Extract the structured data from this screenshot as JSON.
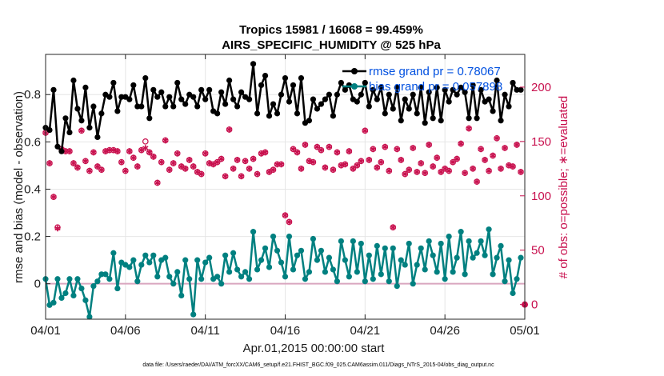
{
  "chart_data": {
    "type": "line",
    "title": "Tropics 15981 / 16068 = 99.459%",
    "subtitle": "AIRS_SPECIFIC_HUMIDITY @ 525 hPa",
    "xlabel": "Apr.01,2015 00:00:00 start",
    "ylabel": "rmse and bias (model - observation)",
    "ylabel_right": "# of obs: o=possible; ∗=evaluated",
    "ylim": [
      -0.15,
      0.97
    ],
    "ylim_right": [
      -13.5,
      230.1
    ],
    "xlim": [
      0,
      30
    ],
    "x_ticks": [
      0,
      5,
      10,
      15,
      20,
      25,
      30
    ],
    "x_tick_labels": [
      "04/01",
      "04/06",
      "04/11",
      "04/16",
      "04/21",
      "04/26",
      "05/01"
    ],
    "y_ticks": [
      0,
      0.2,
      0.4,
      0.6,
      0.8
    ],
    "y_tick_labels": [
      "0",
      "0.2",
      "0.4",
      "0.6",
      "0.8"
    ],
    "y_ticks_right": [
      0,
      50,
      100,
      150,
      200
    ],
    "y_tick_labels_right": [
      "0",
      "50",
      "100",
      "150",
      "200"
    ],
    "grid": true,
    "legend_position": "top-right",
    "footnote": "data file: /Users/raeder/DAI/ATM_forcXX/CAM6_setup/f.e21.FHIST_BGC.f09_025.CAM6assim.011/Diags_NTrS_2015-04/obs_diag_output.nc",
    "colors": {
      "rmse": "#000000",
      "bias": "#008080",
      "obs": "#c8104e",
      "zero_line": "#d9a6bf"
    },
    "series": [
      {
        "name": "rmse",
        "legend": "rmse grand pr = 0.78067",
        "x": [
          0,
          0.25,
          0.5,
          0.75,
          1,
          1.25,
          1.5,
          1.75,
          2,
          2.25,
          2.5,
          2.75,
          3,
          3.25,
          3.5,
          3.75,
          4,
          4.25,
          4.5,
          4.75,
          5,
          5.25,
          5.5,
          5.75,
          6,
          6.25,
          6.5,
          6.75,
          7,
          7.25,
          7.5,
          7.75,
          8,
          8.25,
          8.5,
          8.75,
          9,
          9.25,
          9.5,
          9.75,
          10,
          10.25,
          10.5,
          10.75,
          11,
          11.25,
          11.5,
          11.75,
          12,
          12.25,
          12.5,
          12.75,
          13,
          13.25,
          13.5,
          13.75,
          14,
          14.25,
          14.5,
          14.75,
          15,
          15.25,
          15.5,
          15.75,
          16,
          16.25,
          16.5,
          16.75,
          17,
          17.25,
          17.5,
          17.75,
          18,
          18.25,
          18.5,
          18.75,
          19,
          19.25,
          19.5,
          19.75,
          20,
          20.25,
          20.5,
          20.75,
          21,
          21.25,
          21.5,
          21.75,
          22,
          22.25,
          22.5,
          22.75,
          23,
          23.25,
          23.5,
          23.75,
          24,
          24.25,
          24.5,
          24.75,
          25,
          25.25,
          25.5,
          25.75,
          26,
          26.25,
          26.5,
          26.75,
          27,
          27.25,
          27.5,
          27.75,
          28,
          28.25,
          28.5,
          28.75,
          29,
          29.25,
          29.5,
          29.75
        ],
        "values": [
          0.66,
          0.65,
          0.82,
          0.58,
          0.56,
          0.7,
          0.64,
          0.86,
          0.74,
          0.69,
          0.83,
          0.66,
          0.75,
          0.62,
          0.72,
          0.8,
          0.79,
          0.85,
          0.73,
          0.79,
          0.79,
          0.78,
          0.84,
          0.75,
          0.75,
          0.87,
          0.7,
          0.82,
          0.79,
          0.81,
          0.75,
          0.79,
          0.75,
          0.85,
          0.78,
          0.76,
          0.8,
          0.79,
          0.75,
          0.82,
          0.78,
          0.82,
          0.73,
          0.72,
          0.81,
          0.76,
          0.86,
          0.78,
          0.75,
          0.81,
          0.79,
          0.78,
          0.93,
          0.72,
          0.84,
          0.88,
          0.71,
          0.76,
          0.72,
          0.8,
          0.87,
          0.77,
          0.84,
          0.72,
          0.87,
          0.68,
          0.69,
          0.78,
          0.74,
          0.76,
          0.78,
          0.8,
          0.71,
          0.8,
          0.85,
          0.82,
          0.84,
          0.78,
          0.77,
          0.8,
          0.85,
          0.75,
          0.82,
          0.78,
          0.83,
          0.72,
          0.8,
          0.74,
          0.83,
          0.69,
          0.78,
          0.74,
          0.8,
          0.72,
          0.83,
          0.68,
          0.81,
          0.7,
          0.83,
          0.69,
          0.82,
          0.77,
          0.82,
          0.8,
          0.83,
          0.81,
          0.7,
          0.84,
          0.7,
          0.82,
          0.77,
          0.78,
          0.73,
          0.86,
          0.69,
          0.8,
          0.75,
          0.85,
          0.82,
          0.82
        ]
      },
      {
        "name": "bias",
        "legend": "bias grand pr = 0.057898",
        "x": [
          0,
          0.25,
          0.5,
          0.75,
          1,
          1.25,
          1.5,
          1.75,
          2,
          2.25,
          2.5,
          2.75,
          3,
          3.25,
          3.5,
          3.75,
          4,
          4.25,
          4.5,
          4.75,
          5,
          5.25,
          5.5,
          5.75,
          6,
          6.25,
          6.5,
          6.75,
          7,
          7.25,
          7.5,
          7.75,
          8,
          8.25,
          8.5,
          8.75,
          9,
          9.25,
          9.5,
          9.75,
          10,
          10.25,
          10.5,
          10.75,
          11,
          11.25,
          11.5,
          11.75,
          12,
          12.25,
          12.5,
          12.75,
          13,
          13.25,
          13.5,
          13.75,
          14,
          14.25,
          14.5,
          14.75,
          15,
          15.25,
          15.5,
          15.75,
          16,
          16.25,
          16.5,
          16.75,
          17,
          17.25,
          17.5,
          17.75,
          18,
          18.25,
          18.5,
          18.75,
          19,
          19.25,
          19.5,
          19.75,
          20,
          20.25,
          20.5,
          20.75,
          21,
          21.25,
          21.5,
          21.75,
          22,
          22.25,
          22.5,
          22.75,
          23,
          23.25,
          23.5,
          23.75,
          24,
          24.25,
          24.5,
          24.75,
          25,
          25.25,
          25.5,
          25.75,
          26,
          26.25,
          26.5,
          26.75,
          27,
          27.25,
          27.5,
          27.75,
          28,
          28.25,
          28.5,
          28.75,
          29,
          29.25,
          29.5,
          29.75
        ],
        "values": [
          0.02,
          -0.09,
          -0.08,
          0.02,
          -0.06,
          -0.04,
          0.02,
          -0.05,
          0.02,
          -0.02,
          -0.07,
          -0.14,
          -0.01,
          0.01,
          0.04,
          0.04,
          0.02,
          0.13,
          -0.02,
          0.09,
          0.08,
          0.07,
          0.1,
          0.01,
          0.08,
          0.12,
          0.09,
          0.12,
          0.03,
          0.1,
          0.11,
          0.03,
          0.0,
          0.05,
          -0.05,
          0.1,
          0.02,
          -0.13,
          0.1,
          0.02,
          0.09,
          0.11,
          0.02,
          0.03,
          0.0,
          0.12,
          0.05,
          0.13,
          0.06,
          0.03,
          0.05,
          0.02,
          0.22,
          0.06,
          0.1,
          0.15,
          0.07,
          0.2,
          0.14,
          0.09,
          0.03,
          0.2,
          0.06,
          0.12,
          0.14,
          0.02,
          0.05,
          0.19,
          0.1,
          0.14,
          0.05,
          0.11,
          0.06,
          0.01,
          0.18,
          0.1,
          0.03,
          0.18,
          0.05,
          0.17,
          0.01,
          0.12,
          0.02,
          0.16,
          0.04,
          0.15,
          0.01,
          0.15,
          -0.01,
          0.1,
          0.08,
          0.17,
          0.0,
          0.08,
          0.15,
          0.06,
          0.18,
          0.12,
          0.05,
          0.17,
          0.02,
          0.2,
          0.05,
          0.11,
          0.22,
          0.04,
          0.18,
          0.11,
          0.13,
          0.18,
          0.12,
          0.23,
          0.04,
          0.11,
          0.16,
          0.01,
          0.1,
          -0.04,
          0.02,
          0.11
        ]
      },
      {
        "name": "obs_evaluated",
        "axis": "right",
        "marker": "asterisk",
        "x": [
          0,
          0.25,
          0.5,
          0.75,
          1,
          1.25,
          1.5,
          1.75,
          2,
          2.25,
          2.5,
          2.75,
          3,
          3.25,
          3.5,
          3.75,
          4,
          4.25,
          4.5,
          4.75,
          5,
          5.25,
          5.5,
          5.75,
          6,
          6.25,
          6.5,
          6.75,
          7,
          7.25,
          7.5,
          7.75,
          8,
          8.25,
          8.5,
          8.75,
          9,
          9.25,
          9.5,
          9.75,
          10,
          10.25,
          10.5,
          10.75,
          11,
          11.25,
          11.5,
          11.75,
          12,
          12.25,
          12.5,
          12.75,
          13,
          13.25,
          13.5,
          13.75,
          14,
          14.25,
          14.5,
          14.75,
          15,
          15.25,
          15.5,
          15.75,
          16,
          16.25,
          16.5,
          16.75,
          17,
          17.25,
          17.5,
          17.75,
          18,
          18.25,
          18.5,
          18.75,
          19,
          19.25,
          19.5,
          19.75,
          20,
          20.25,
          20.5,
          20.75,
          21,
          21.25,
          21.5,
          21.75,
          22,
          22.25,
          22.5,
          22.75,
          23,
          23.25,
          23.5,
          23.75,
          24,
          24.25,
          24.5,
          24.75,
          25,
          25.25,
          25.5,
          25.75,
          26,
          26.25,
          26.5,
          26.75,
          27,
          27.25,
          27.5,
          27.75,
          28,
          28.25,
          28.5,
          28.75,
          29,
          29.25,
          29.5,
          29.75
        ],
        "values": [
          158,
          130,
          99,
          70,
          143,
          141,
          141,
          130,
          126,
          160,
          132,
          123,
          140,
          127,
          124,
          141,
          142,
          142,
          141,
          131,
          123,
          141,
          135,
          127,
          142,
          144,
          140,
          136,
          112,
          131,
          151,
          124,
          130,
          139,
          127,
          125,
          133,
          127,
          122,
          120,
          139,
          130,
          129,
          131,
          134,
          118,
          161,
          125,
          133,
          118,
          132,
          125,
          134,
          120,
          139,
          140,
          122,
          124,
          129,
          129,
          82,
          76,
          143,
          140,
          125,
          147,
          132,
          131,
          145,
          142,
          126,
          145,
          124,
          140,
          128,
          129,
          141,
          125,
          128,
          132,
          160,
          133,
          143,
          126,
          131,
          145,
          123,
          71,
          143,
          133,
          120,
          124,
          144,
          122,
          130,
          121,
          147,
          127,
          135,
          122,
          125,
          123,
          131,
          134,
          148,
          121,
          162,
          125,
          113,
          143,
          133,
          123,
          137,
          153,
          125,
          144,
          128,
          127,
          147,
          122
        ]
      },
      {
        "name": "obs_possible",
        "axis": "right",
        "marker": "circle",
        "x": [
          0,
          0.25,
          0.5,
          0.75,
          1,
          1.25,
          1.5,
          1.75,
          2,
          2.25,
          2.5,
          2.75,
          3,
          3.25,
          3.5,
          3.75,
          4,
          4.25,
          4.5,
          4.75,
          5,
          5.25,
          5.5,
          5.75,
          6,
          6.25,
          6.5,
          6.75,
          7,
          7.25,
          7.5,
          7.75,
          8,
          8.25,
          8.5,
          8.75,
          9,
          9.25,
          9.5,
          9.75,
          10,
          10.25,
          10.5,
          10.75,
          11,
          11.25,
          11.5,
          11.75,
          12,
          12.25,
          12.5,
          12.75,
          13,
          13.25,
          13.5,
          13.75,
          14,
          14.25,
          14.5,
          14.75,
          15,
          15.25,
          15.5,
          15.75,
          16,
          16.25,
          16.5,
          16.75,
          17,
          17.25,
          17.5,
          17.75,
          18,
          18.25,
          18.5,
          18.75,
          19,
          19.25,
          19.5,
          19.75,
          20,
          20.25,
          20.5,
          20.75,
          21,
          21.25,
          21.5,
          21.75,
          22,
          22.25,
          22.5,
          22.75,
          23,
          23.25,
          23.5,
          23.75,
          24,
          24.25,
          24.5,
          24.75,
          25,
          25.25,
          25.5,
          25.75,
          26,
          26.25,
          26.5,
          26.75,
          27,
          27.25,
          27.5,
          27.75,
          28,
          28.25,
          28.5,
          28.75,
          29,
          29.25,
          29.5,
          29.75
        ],
        "values": [
          158,
          130,
          99,
          71,
          143,
          141,
          141,
          130,
          126,
          160,
          132,
          123,
          140,
          127,
          124,
          141,
          142,
          142,
          141,
          131,
          123,
          141,
          135,
          127,
          142,
          150,
          140,
          136,
          112,
          131,
          151,
          124,
          130,
          139,
          127,
          125,
          133,
          127,
          122,
          120,
          139,
          130,
          129,
          131,
          134,
          118,
          161,
          125,
          133,
          118,
          132,
          125,
          134,
          120,
          139,
          140,
          122,
          124,
          129,
          129,
          82,
          76,
          143,
          140,
          125,
          147,
          132,
          131,
          145,
          142,
          126,
          145,
          124,
          140,
          128,
          129,
          141,
          125,
          128,
          132,
          160,
          133,
          143,
          126,
          131,
          145,
          123,
          71,
          143,
          133,
          120,
          124,
          144,
          122,
          130,
          121,
          147,
          127,
          135,
          122,
          125,
          123,
          131,
          134,
          148,
          121,
          162,
          125,
          113,
          143,
          133,
          123,
          137,
          153,
          125,
          144,
          128,
          127,
          147,
          122
        ]
      }
    ]
  }
}
